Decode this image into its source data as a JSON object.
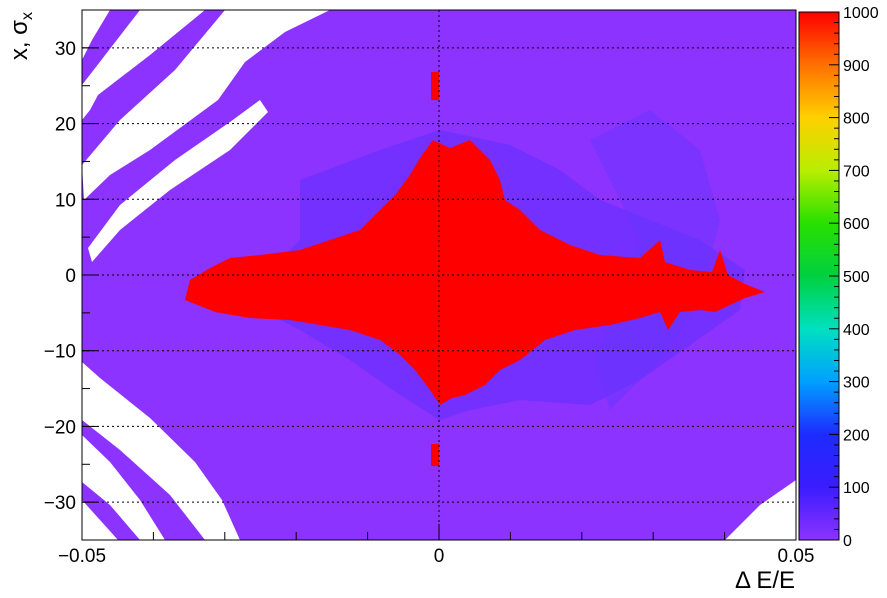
{
  "chart_data": {
    "type": "heatmap",
    "xlabel": "Δ E/E",
    "ylabel": "x, σ",
    "ylabel_sub": "x",
    "xlim": [
      -0.05,
      0.05
    ],
    "ylim": [
      -35,
      35
    ],
    "x_ticks": [
      {
        "value": -0.05,
        "label": "−0.05"
      },
      {
        "value": 0,
        "label": "0"
      },
      {
        "value": 0.05,
        "label": "0.05"
      }
    ],
    "y_ticks": [
      {
        "value": 30,
        "label": "30"
      },
      {
        "value": 20,
        "label": "20"
      },
      {
        "value": 10,
        "label": "10"
      },
      {
        "value": 0,
        "label": "0"
      },
      {
        "value": -10,
        "label": "−10"
      },
      {
        "value": -20,
        "label": "−20"
      },
      {
        "value": -30,
        "label": "−30"
      }
    ],
    "grid": true,
    "z_range": [
      0,
      1000
    ],
    "colorbar_ticks": [
      0,
      100,
      200,
      300,
      400,
      500,
      600,
      700,
      800,
      900,
      1000
    ],
    "colorbar_labels": [
      "0",
      "100",
      "200",
      "300",
      "400",
      "500",
      "600",
      "700",
      "800",
      "900",
      "1000"
    ],
    "colors": {
      "background_level": "#8c33ff",
      "mid_level": "#5f2dff",
      "max_level": "#ff0000",
      "empty": "#ffffff"
    },
    "regions": {
      "saturated_core": {
        "value": 1000,
        "x_range": [
          -0.035,
          0.047
        ],
        "y_range": [
          -18,
          18
        ]
      },
      "halo": {
        "value": 100,
        "x_range": [
          -0.018,
          0.042
        ],
        "y_range": [
          -20,
          21
        ]
      },
      "spikes": [
        {
          "value": 1000,
          "x": 0,
          "y": 26
        },
        {
          "value": 1000,
          "x": 0,
          "y": -24
        }
      ],
      "empty_corners": [
        "upper-left",
        "lower-left",
        "lower-right"
      ]
    }
  }
}
